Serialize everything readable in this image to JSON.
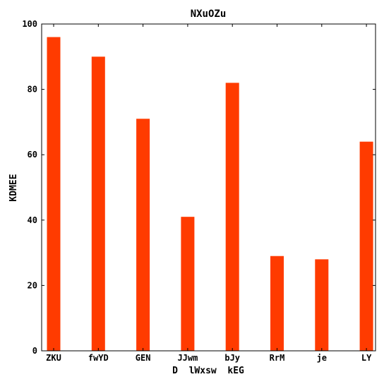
{
  "chart_data": {
    "type": "bar",
    "title": "NXuOZu",
    "xlabel": "D  lWxsw  kEG",
    "ylabel": "KDMEE",
    "categories": [
      "ZKU",
      "fwYD",
      "GEN",
      "JJwm",
      "bJy",
      "RrM",
      "je",
      "LY"
    ],
    "values": [
      96,
      90,
      71,
      41,
      82,
      29,
      28,
      64
    ],
    "ylim": [
      0,
      100
    ],
    "yticks": [
      "0",
      "20",
      "40",
      "60",
      "80",
      "100"
    ],
    "grid": false,
    "bar_color": "#ff3b00"
  }
}
